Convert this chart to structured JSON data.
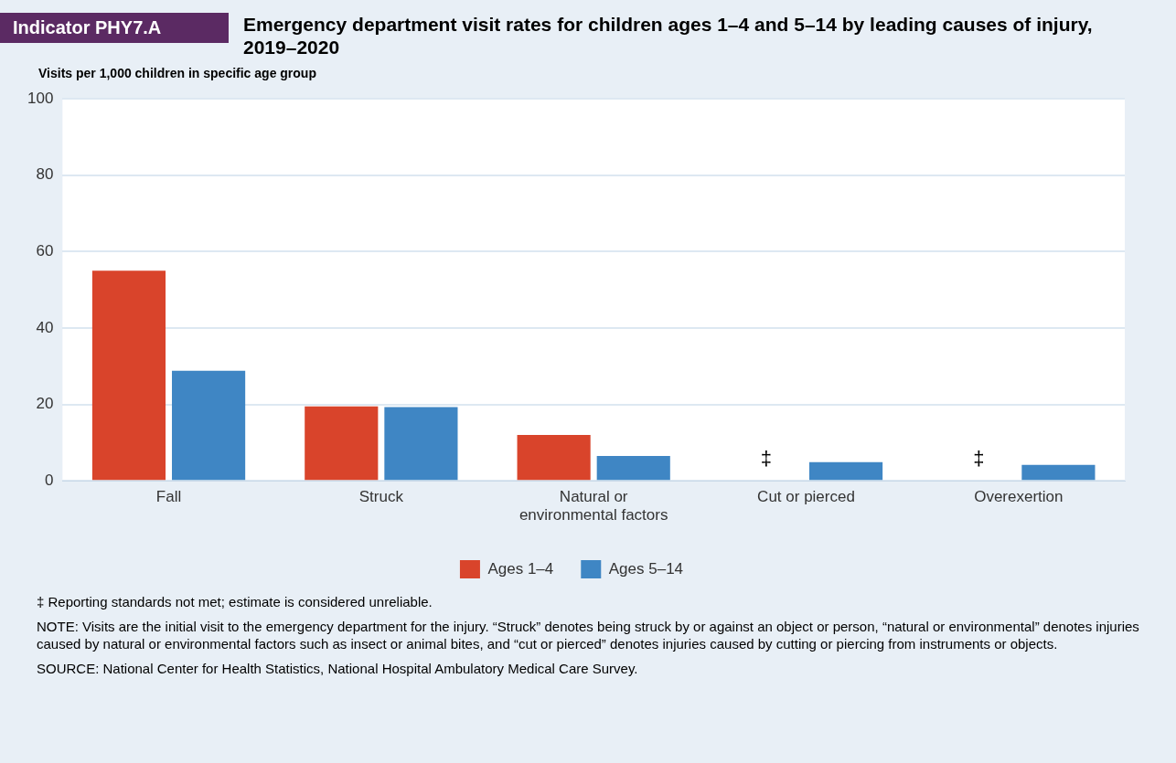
{
  "chart_data": {
    "type": "bar",
    "subtitle": "Indicator PHY7.A",
    "title": "Emergency department visit rates for children ages 1–4 and 5–14 by leading causes of injury, 2019–2020",
    "ylabel": "Visits per 1,000 children in specific age group",
    "categories": [
      "Fall",
      "Struck",
      "Natural or environmental factors",
      "Cut or pierced",
      "Overexertion"
    ],
    "series": [
      {
        "name": "Ages 1–4",
        "color": "#d9442b",
        "values": [
          55,
          19.5,
          12,
          null,
          null
        ],
        "value_labels": [
          null,
          null,
          null,
          "‡",
          "‡"
        ]
      },
      {
        "name": "Ages 5–14",
        "color": "#3f86c4",
        "values": [
          28.8,
          19.3,
          6.5,
          4.9,
          4.2
        ]
      }
    ],
    "ylim": [
      0,
      100
    ],
    "yticks": [
      0,
      20,
      40,
      60,
      80,
      100
    ],
    "grid": "y",
    "legend": "bottom",
    "annotations": [
      "‡ Reporting standards not met; estimate is considered unreliable.",
      "NOTE: Visits are the initial visit to the emergency department for the injury. “Struck” denotes being struck by or against an object or person, “natural or environmental” denotes injuries caused by natural or environmental factors such as insect or animal bites, and “cut or pierced” denotes injuries caused by cutting or piercing from instruments or objects.",
      "SOURCE: National Center for Health Statistics, National Hospital Ambulatory Medical Care Survey."
    ]
  }
}
